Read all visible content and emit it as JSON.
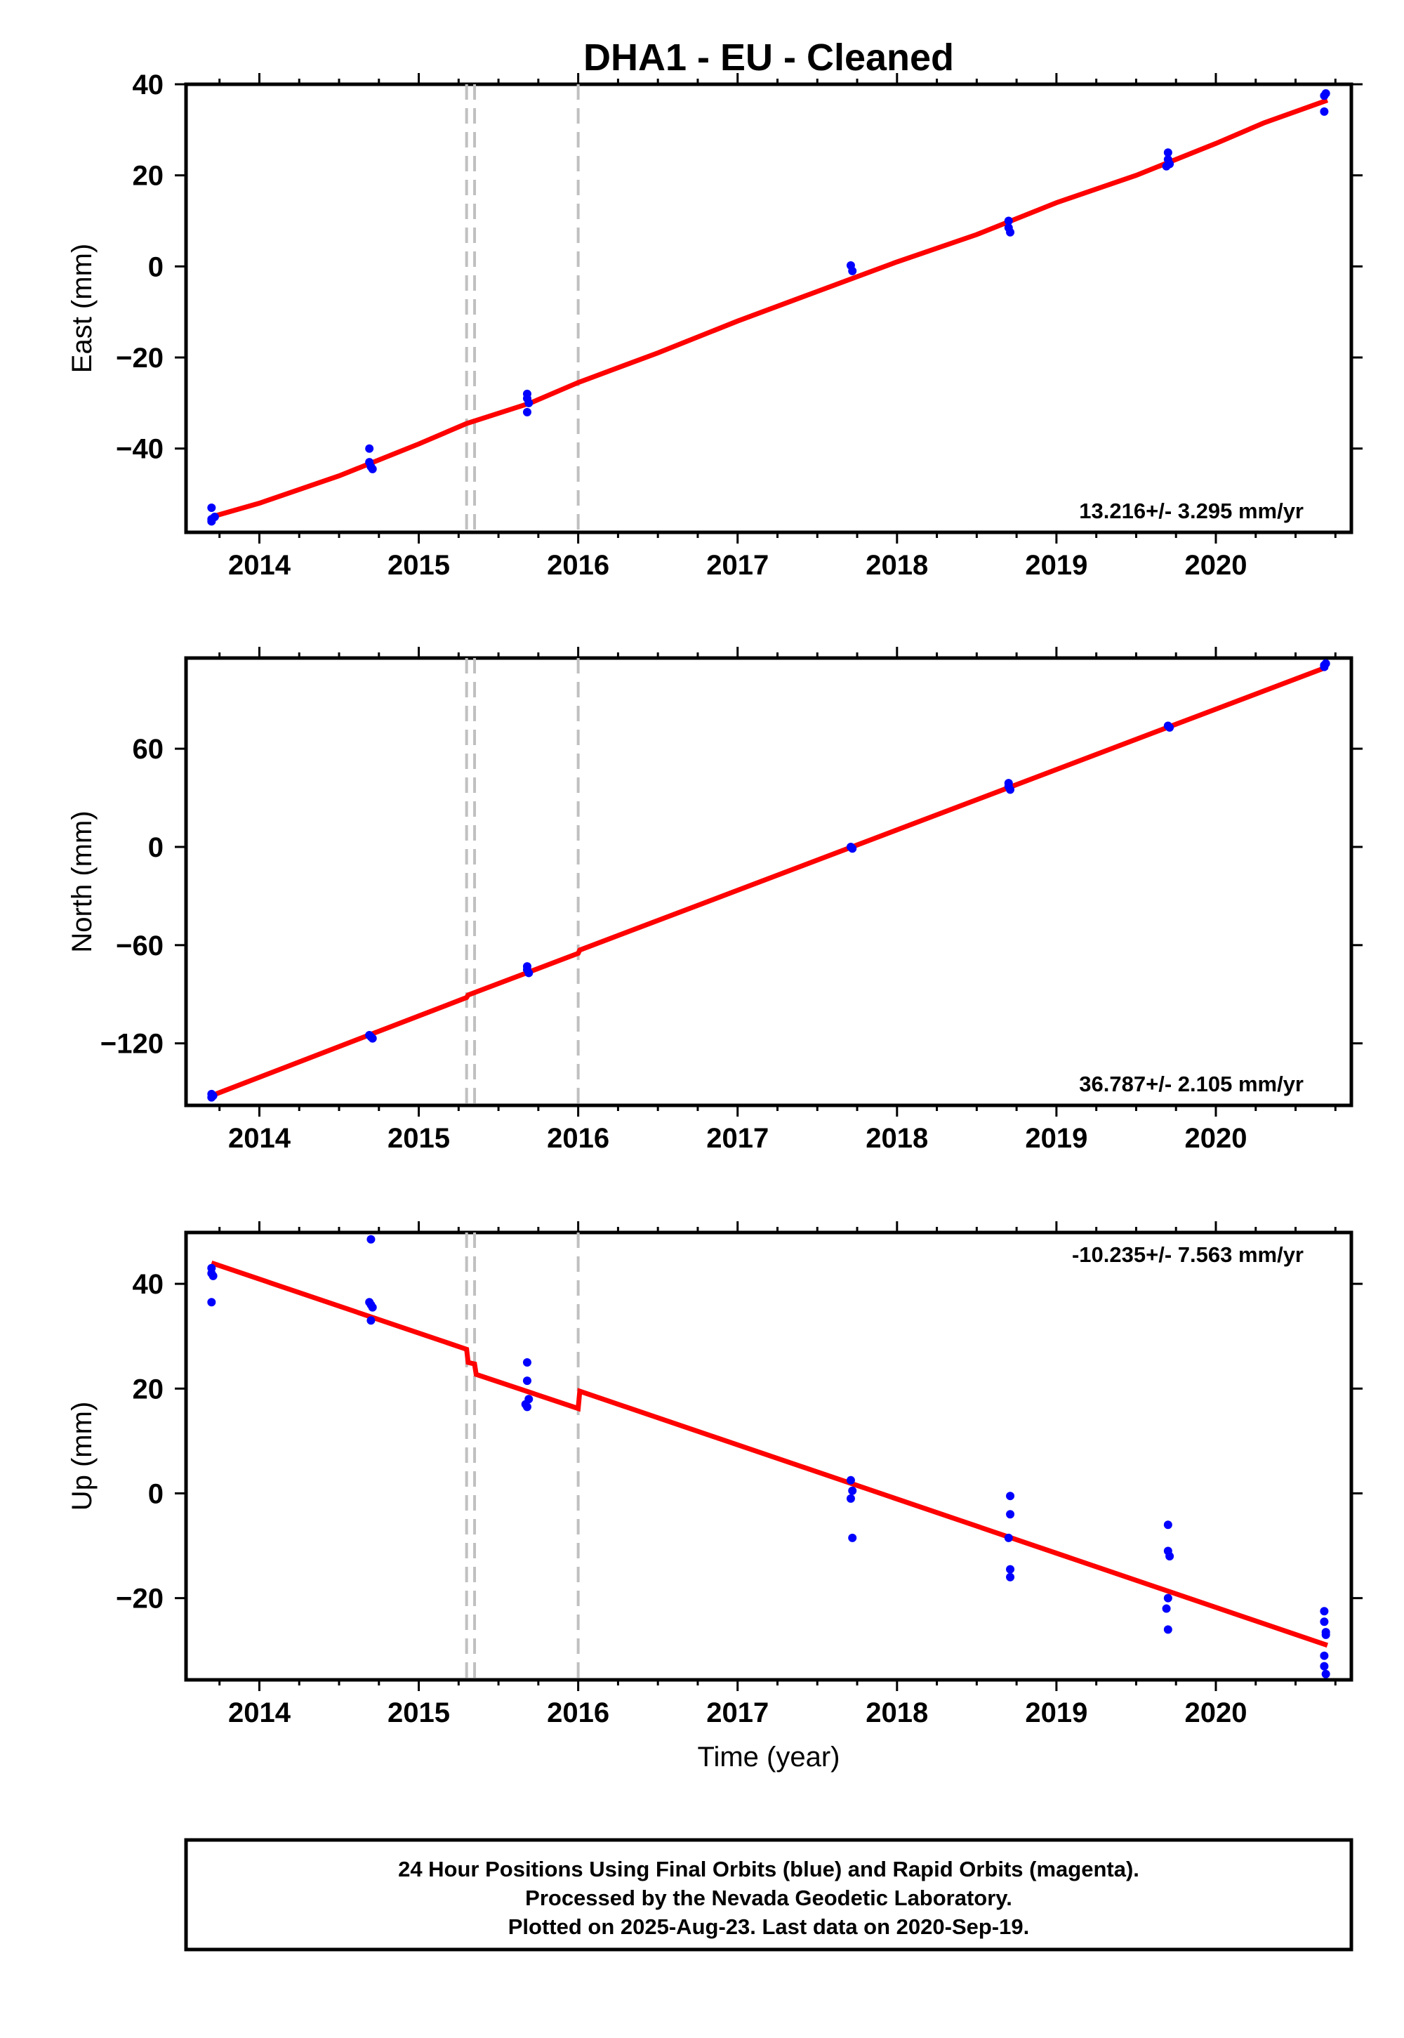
{
  "title": "DHA1  - EU - Cleaned",
  "xlabel": "Time (year)",
  "colors": {
    "final_orbits": "#0000ff",
    "model": "#ff0000",
    "step": "#c0c0c0"
  },
  "x_ticks": [
    "2014",
    "2015",
    "2016",
    "2017",
    "2018",
    "2019",
    "2020"
  ],
  "step_epochs": [
    2015.3,
    2015.35,
    2016.0
  ],
  "footer": {
    "line1": "24 Hour Positions Using Final Orbits (blue) and Rapid Orbits (magenta).",
    "line2": "Processed by the Nevada Geodetic Laboratory.",
    "line3": "Plotted on 2025-Aug-23. Last data on 2020-Sep-19."
  },
  "chart_data": [
    {
      "type": "scatter",
      "name": "east",
      "ylabel": "East (mm)",
      "rate_text": "13.216+/- 3.295 mm/yr",
      "xlim": [
        2013.54,
        2020.85
      ],
      "ylim": [
        -58.4,
        40
      ],
      "y_ticks": [
        40,
        20,
        0,
        -20,
        -40
      ],
      "points": [
        {
          "x": 2013.7,
          "y": -53
        },
        {
          "x": 2013.7,
          "y": -55.5
        },
        {
          "x": 2013.7,
          "y": -56
        },
        {
          "x": 2013.72,
          "y": -55
        },
        {
          "x": 2014.69,
          "y": -40
        },
        {
          "x": 2014.69,
          "y": -43
        },
        {
          "x": 2014.7,
          "y": -44
        },
        {
          "x": 2014.71,
          "y": -44.5
        },
        {
          "x": 2015.68,
          "y": -28
        },
        {
          "x": 2015.68,
          "y": -29
        },
        {
          "x": 2015.69,
          "y": -30
        },
        {
          "x": 2015.68,
          "y": -32
        },
        {
          "x": 2017.71,
          "y": 0.2
        },
        {
          "x": 2017.72,
          "y": -1
        },
        {
          "x": 2018.7,
          "y": 10
        },
        {
          "x": 2018.7,
          "y": 8.5
        },
        {
          "x": 2018.71,
          "y": 7.5
        },
        {
          "x": 2019.7,
          "y": 25
        },
        {
          "x": 2019.7,
          "y": 23.5
        },
        {
          "x": 2019.71,
          "y": 22.5
        },
        {
          "x": 2019.69,
          "y": 22
        },
        {
          "x": 2020.68,
          "y": 37.5
        },
        {
          "x": 2020.69,
          "y": 38
        },
        {
          "x": 2020.68,
          "y": 34
        }
      ],
      "model": [
        {
          "x": 2013.7,
          "y": -55
        },
        {
          "x": 2014.0,
          "y": -52
        },
        {
          "x": 2014.5,
          "y": -46
        },
        {
          "x": 2015.0,
          "y": -39
        },
        {
          "x": 2015.3,
          "y": -34.5
        },
        {
          "x": 2015.7,
          "y": -30
        },
        {
          "x": 2016.0,
          "y": -25.5
        },
        {
          "x": 2016.5,
          "y": -19
        },
        {
          "x": 2017.0,
          "y": -12
        },
        {
          "x": 2017.5,
          "y": -5.5
        },
        {
          "x": 2018.0,
          "y": 1
        },
        {
          "x": 2018.5,
          "y": 7
        },
        {
          "x": 2019.0,
          "y": 14
        },
        {
          "x": 2019.5,
          "y": 20
        },
        {
          "x": 2020.0,
          "y": 27
        },
        {
          "x": 2020.3,
          "y": 31.5
        },
        {
          "x": 2020.7,
          "y": 36.5
        }
      ]
    },
    {
      "type": "scatter",
      "name": "north",
      "ylabel": "North (mm)",
      "rate_text": "36.787+/- 2.105 mm/yr",
      "xlim": [
        2013.54,
        2020.85
      ],
      "ylim": [
        -157.9,
        115.4
      ],
      "y_ticks": [
        60,
        0,
        -60,
        -120
      ],
      "points": [
        {
          "x": 2013.7,
          "y": -151
        },
        {
          "x": 2013.7,
          "y": -153
        },
        {
          "x": 2013.71,
          "y": -152
        },
        {
          "x": 2014.69,
          "y": -115
        },
        {
          "x": 2014.7,
          "y": -116
        },
        {
          "x": 2014.71,
          "y": -117
        },
        {
          "x": 2015.68,
          "y": -73
        },
        {
          "x": 2015.68,
          "y": -75
        },
        {
          "x": 2015.69,
          "y": -77
        },
        {
          "x": 2017.71,
          "y": 0
        },
        {
          "x": 2017.72,
          "y": -1
        },
        {
          "x": 2018.7,
          "y": 39
        },
        {
          "x": 2018.7,
          "y": 37
        },
        {
          "x": 2018.71,
          "y": 35
        },
        {
          "x": 2019.7,
          "y": 74
        },
        {
          "x": 2019.71,
          "y": 73
        },
        {
          "x": 2020.68,
          "y": 111
        },
        {
          "x": 2020.69,
          "y": 112
        },
        {
          "x": 2020.68,
          "y": 110
        }
      ],
      "model": [
        {
          "x": 2013.7,
          "y": -152
        },
        {
          "x": 2015.3,
          "y": -92
        },
        {
          "x": 2015.31,
          "y": -90.5
        },
        {
          "x": 2015.35,
          "y": -89
        },
        {
          "x": 2016.0,
          "y": -65
        },
        {
          "x": 2016.01,
          "y": -63
        },
        {
          "x": 2020.7,
          "y": 110
        }
      ]
    },
    {
      "type": "scatter",
      "name": "up",
      "ylabel": "Up (mm)",
      "rate_text": "-10.235+/- 7.563 mm/yr",
      "xlim": [
        2013.54,
        2020.85
      ],
      "ylim": [
        -35.6,
        49.8
      ],
      "y_ticks": [
        40,
        20,
        0,
        -20
      ],
      "points": [
        {
          "x": 2013.7,
          "y": 42
        },
        {
          "x": 2013.7,
          "y": 43
        },
        {
          "x": 2013.71,
          "y": 41.5
        },
        {
          "x": 2013.7,
          "y": 36.5
        },
        {
          "x": 2014.7,
          "y": 48.5
        },
        {
          "x": 2014.69,
          "y": 36.5
        },
        {
          "x": 2014.7,
          "y": 36
        },
        {
          "x": 2014.71,
          "y": 35.5
        },
        {
          "x": 2014.7,
          "y": 33
        },
        {
          "x": 2015.68,
          "y": 25
        },
        {
          "x": 2015.68,
          "y": 21.5
        },
        {
          "x": 2015.69,
          "y": 18
        },
        {
          "x": 2015.67,
          "y": 17
        },
        {
          "x": 2015.68,
          "y": 16.5
        },
        {
          "x": 2017.71,
          "y": 2.5
        },
        {
          "x": 2017.72,
          "y": 0.5
        },
        {
          "x": 2017.71,
          "y": -1
        },
        {
          "x": 2017.72,
          "y": -8.5
        },
        {
          "x": 2018.71,
          "y": -0.5
        },
        {
          "x": 2018.71,
          "y": -4
        },
        {
          "x": 2018.7,
          "y": -8.5
        },
        {
          "x": 2018.71,
          "y": -14.5
        },
        {
          "x": 2018.71,
          "y": -16
        },
        {
          "x": 2019.7,
          "y": -6
        },
        {
          "x": 2019.7,
          "y": -11
        },
        {
          "x": 2019.71,
          "y": -12
        },
        {
          "x": 2019.7,
          "y": -20
        },
        {
          "x": 2019.69,
          "y": -22
        },
        {
          "x": 2019.7,
          "y": -26
        },
        {
          "x": 2020.68,
          "y": -22.5
        },
        {
          "x": 2020.68,
          "y": -24.5
        },
        {
          "x": 2020.69,
          "y": -26.5
        },
        {
          "x": 2020.69,
          "y": -27
        },
        {
          "x": 2020.68,
          "y": -31
        },
        {
          "x": 2020.68,
          "y": -33
        },
        {
          "x": 2020.69,
          "y": -34.5
        }
      ],
      "model": [
        {
          "x": 2013.7,
          "y": 44
        },
        {
          "x": 2015.3,
          "y": 27.5
        },
        {
          "x": 2015.31,
          "y": 25
        },
        {
          "x": 2015.35,
          "y": 24.7
        },
        {
          "x": 2015.36,
          "y": 22.7
        },
        {
          "x": 2016.0,
          "y": 16.2
        },
        {
          "x": 2016.01,
          "y": 19.5
        },
        {
          "x": 2020.7,
          "y": -29
        }
      ]
    }
  ]
}
